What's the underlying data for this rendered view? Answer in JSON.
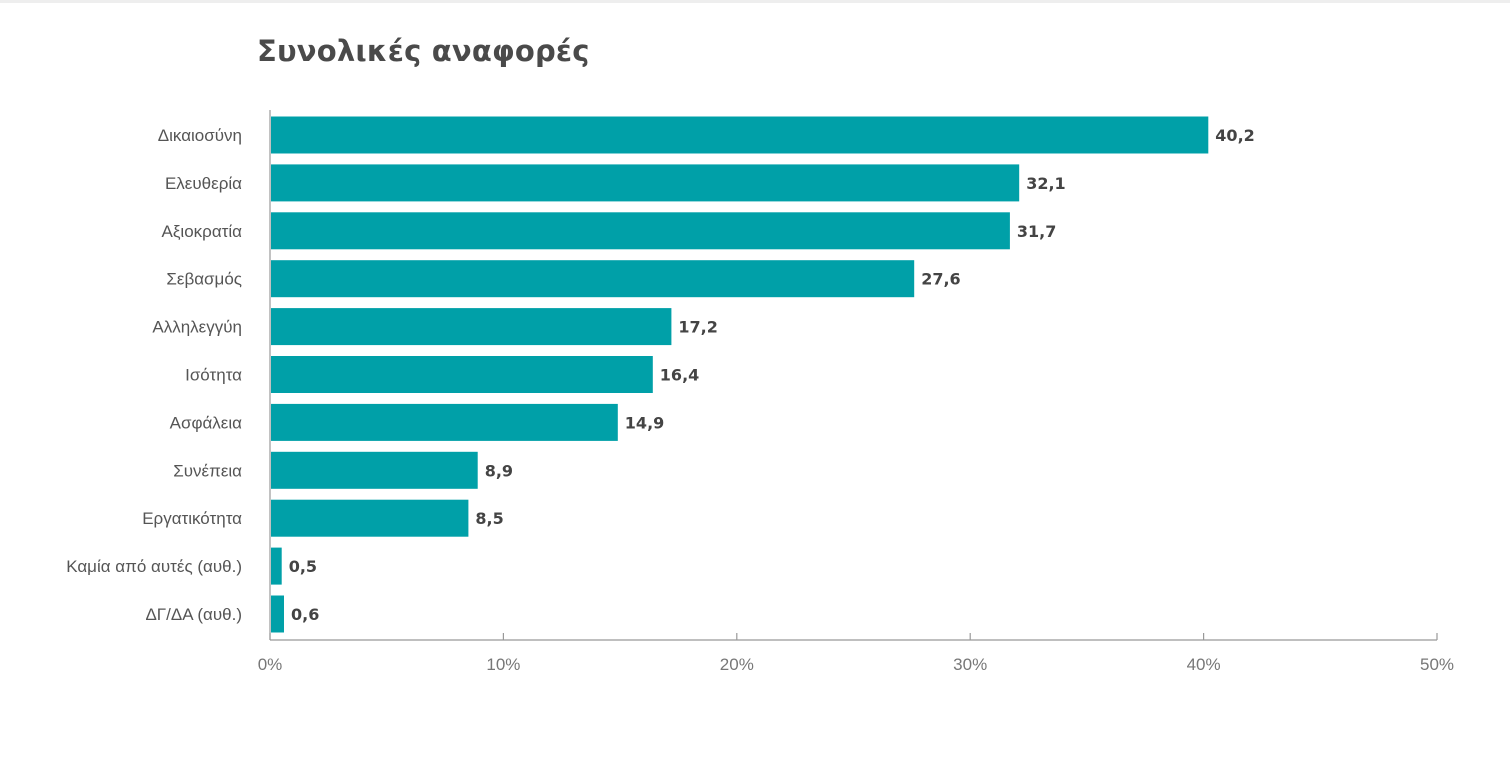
{
  "chart_data": {
    "type": "bar",
    "orientation": "horizontal",
    "title": "Συνολικές αναφορές",
    "xlabel": "",
    "ylabel": "",
    "categories": [
      "Δικαιοσύνη",
      "Ελευθερία",
      "Αξιοκρατία",
      "Σεβασμός",
      "Αλληλεγγύη",
      "Ισότητα",
      "Ασφάλεια",
      "Συνέπεια",
      "Εργατικότητα",
      "Καμία από αυτές (αυθ.)",
      "ΔΓ/ΔΑ (αυθ.)"
    ],
    "values": [
      40.2,
      32.1,
      31.7,
      27.6,
      17.2,
      16.4,
      14.9,
      8.9,
      8.5,
      0.5,
      0.6
    ],
    "value_labels": [
      "40,2",
      "32,1",
      "31,7",
      "27,6",
      "17,2",
      "16,4",
      "14,9",
      "8,9",
      "8,5",
      "0,5",
      "0,6"
    ],
    "xlim": [
      0,
      50
    ],
    "xticks": [
      0,
      10,
      20,
      30,
      40,
      50
    ],
    "xtick_labels": [
      "0%",
      "10%",
      "20%",
      "30%",
      "40%",
      "50%"
    ],
    "grid": false,
    "legend": "none",
    "colors": {
      "bar": "#00a0a8",
      "axis": "#999999",
      "title": "#4a4a4a"
    }
  }
}
